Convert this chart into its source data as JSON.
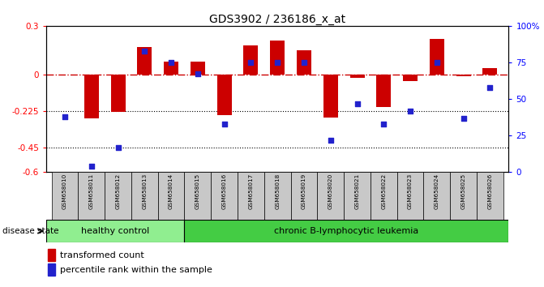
{
  "title": "GDS3902 / 236186_x_at",
  "samples": [
    "GSM658010",
    "GSM658011",
    "GSM658012",
    "GSM658013",
    "GSM658014",
    "GSM658015",
    "GSM658016",
    "GSM658017",
    "GSM658018",
    "GSM658019",
    "GSM658020",
    "GSM658021",
    "GSM658022",
    "GSM658023",
    "GSM658024",
    "GSM658025",
    "GSM658026"
  ],
  "red_bars": [
    0.0,
    -0.27,
    -0.23,
    0.17,
    0.08,
    0.08,
    -0.25,
    0.18,
    0.21,
    0.15,
    -0.265,
    -0.02,
    -0.2,
    -0.04,
    0.22,
    -0.01,
    0.04
  ],
  "blue_pct": [
    38,
    4,
    17,
    83,
    75,
    67,
    33,
    75,
    75,
    75,
    22,
    47,
    33,
    42,
    75,
    37,
    58
  ],
  "ylim_left": [
    -0.6,
    0.3
  ],
  "ylim_right": [
    0,
    100
  ],
  "yticks_left": [
    0.3,
    0.0,
    -0.225,
    -0.45,
    -0.6
  ],
  "yticks_right": [
    100,
    75,
    50,
    25,
    0
  ],
  "healthy_count": 5,
  "healthy_label": "healthy control",
  "leukemia_label": "chronic B-lymphocytic leukemia",
  "disease_state_label": "disease state",
  "legend_red": "transformed count",
  "legend_blue": "percentile rank within the sample",
  "bar_color": "#cc0000",
  "dot_color": "#2222cc",
  "hline_color": "#cc0000",
  "healthy_bg": "#90ee90",
  "leukemia_bg": "#44cc44",
  "sample_bg": "#c8c8c8",
  "bar_width": 0.55
}
